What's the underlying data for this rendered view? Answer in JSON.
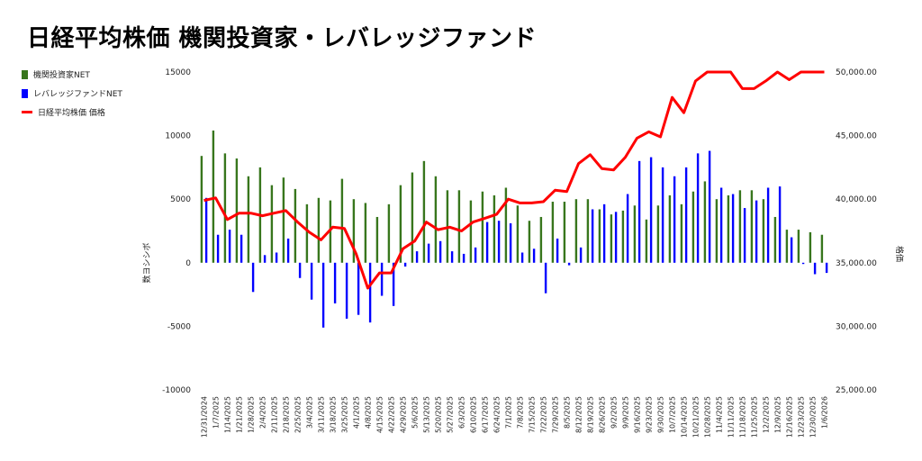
{
  "chart_data": {
    "type": "bar",
    "title": "日経平均株価 機関投資家・レバレッジファンド",
    "ylabel_left": "数ヨシシボ",
    "ylabel_right": "格価",
    "ylim_left": [
      -10000,
      15000
    ],
    "ylim_right": [
      25000,
      50000
    ],
    "left_ticks": [
      "15000",
      "10000",
      "5000",
      "0",
      "-5000",
      "-10000"
    ],
    "right_ticks": [
      "50,000.00",
      "45,000.00",
      "40,000.00",
      "35,000.00",
      "30,000.00",
      "25,000.00"
    ],
    "grid": false,
    "legend_position": "left",
    "categories": [
      "12/31/2024",
      "1/7/2025",
      "1/14/2025",
      "1/21/2025",
      "1/28/2025",
      "2/4/2025",
      "2/11/2025",
      "2/18/2025",
      "2/25/2025",
      "3/4/2025",
      "3/11/2025",
      "3/18/2025",
      "3/25/2025",
      "4/1/2025",
      "4/8/2025",
      "4/15/2025",
      "4/22/2025",
      "4/29/2025",
      "5/6/2025",
      "5/13/2025",
      "5/20/2025",
      "5/27/2025",
      "6/3/2025",
      "6/10/2025",
      "6/17/2025",
      "6/24/2025",
      "7/1/2025",
      "7/8/2025",
      "7/15/2025",
      "7/22/2025",
      "7/29/2025",
      "8/5/2025",
      "8/12/2025",
      "8/19/2025",
      "8/26/2025",
      "9/2/2025",
      "9/9/2025",
      "9/16/2025",
      "9/23/2025",
      "9/30/2025",
      "10/7/2025",
      "10/14/2025",
      "10/21/2025",
      "10/28/2025",
      "11/4/2025",
      "11/11/2025",
      "11/18/2025",
      "11/25/2025",
      "12/2/2025",
      "12/9/2025",
      "12/16/2025",
      "12/23/2025",
      "12/30/2025",
      "1/6/2026"
    ],
    "series": [
      {
        "name": "機関投資家NET",
        "color": "#38761d",
        "axis": "left",
        "values": [
          8400,
          10400,
          8600,
          8200,
          6800,
          7500,
          6100,
          6700,
          5800,
          4600,
          5100,
          4900,
          6600,
          5000,
          4700,
          3600,
          4600,
          6100,
          7100,
          8000,
          6800,
          5700,
          5700,
          4900,
          5600,
          5300,
          5900,
          4500,
          3300,
          3600,
          4800,
          4800,
          5000,
          5000,
          4200,
          3800,
          4100,
          4500,
          3400,
          4500,
          5300,
          4600,
          5600,
          6400,
          5000,
          5300,
          5700,
          5700,
          5000,
          3600,
          2600,
          2600,
          2400,
          2200
        ]
      },
      {
        "name": "レバレッジファンドNET",
        "color": "#0000ff",
        "axis": "left",
        "values": [
          5100,
          2200,
          2600,
          2200,
          -2300,
          600,
          800,
          1900,
          -1200,
          -2900,
          -5100,
          -3200,
          -4400,
          -4100,
          -4700,
          -2600,
          -3400,
          -300,
          900,
          1500,
          1700,
          900,
          700,
          1200,
          3200,
          3300,
          3100,
          800,
          1100,
          -2400,
          1900,
          -200,
          1200,
          4200,
          4600,
          4000,
          5400,
          8000,
          8300,
          7500,
          6800,
          7500,
          8600,
          8800,
          5900,
          5400,
          4300,
          4900,
          5900,
          6000,
          2000,
          -100,
          -900,
          -800
        ]
      },
      {
        "name": "日経平均株価 価格",
        "color": "#ff0000",
        "axis": "right",
        "values": [
          39900,
          40100,
          38400,
          38900,
          38900,
          38700,
          38900,
          39100,
          38200,
          37400,
          36800,
          37800,
          37700,
          35700,
          33000,
          34200,
          34200,
          36100,
          36700,
          38200,
          37600,
          37800,
          37500,
          38200,
          38500,
          38800,
          40000,
          39700,
          39700,
          39800,
          40700,
          40600,
          42800,
          43500,
          42400,
          42300,
          43300,
          44800,
          45300,
          44900,
          48000,
          46800,
          49300,
          50200,
          51600,
          51000,
          48700,
          48700,
          49300,
          50600,
          49400,
          50400,
          50300,
          51800
        ]
      }
    ]
  }
}
